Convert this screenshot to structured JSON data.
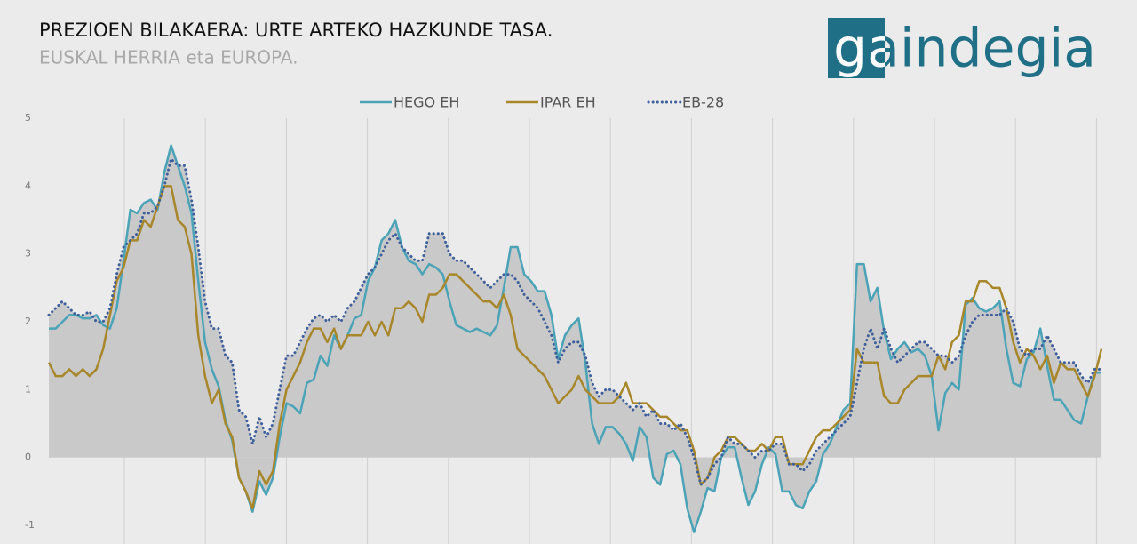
{
  "logo_text": "gaindegia",
  "chart_data": {
    "type": "line",
    "title": "PREZIOEN BILAKAERA: URTE ARTEKO HAZKUNDE TASA.",
    "subtitle": "EUSKAL HERRIA eta EUROPA.",
    "ylim": [
      -1,
      5
    ],
    "yticks": [
      -1,
      0,
      1,
      2,
      3,
      4,
      5
    ],
    "negative_tick_color": "#c00000",
    "area_color": "#c9c9c9",
    "legend": "top",
    "series": [
      {
        "name": "HEGO EH",
        "color": "#4ba3b8",
        "style": "solid",
        "area": true,
        "values": [
          1.9,
          1.9,
          2.0,
          2.1,
          2.1,
          2.05,
          2.05,
          2.1,
          1.95,
          1.9,
          2.2,
          2.9,
          3.65,
          3.6,
          3.75,
          3.8,
          3.65,
          4.2,
          4.6,
          4.3,
          4.0,
          3.6,
          2.6,
          1.7,
          1.3,
          1.05,
          0.55,
          0.25,
          -0.3,
          -0.5,
          -0.8,
          -0.35,
          -0.55,
          -0.3,
          0.3,
          0.8,
          0.75,
          0.65,
          1.1,
          1.15,
          1.5,
          1.35,
          1.8,
          1.6,
          1.8,
          2.05,
          2.1,
          2.6,
          2.8,
          3.2,
          3.3,
          3.5,
          3.1,
          2.9,
          2.85,
          2.7,
          2.85,
          2.8,
          2.7,
          2.3,
          1.95,
          1.9,
          1.85,
          1.9,
          1.85,
          1.8,
          1.95,
          2.5,
          3.1,
          3.1,
          2.7,
          2.6,
          2.45,
          2.45,
          2.1,
          1.45,
          1.8,
          1.95,
          2.05,
          1.4,
          0.5,
          0.2,
          0.45,
          0.45,
          0.35,
          0.2,
          -0.05,
          0.45,
          0.3,
          -0.3,
          -0.4,
          0.05,
          0.1,
          -0.1,
          -0.75,
          -1.1,
          -0.8,
          -0.45,
          -0.5,
          0.0,
          0.15,
          0.15,
          -0.3,
          -0.7,
          -0.5,
          -0.1,
          0.15,
          0.05,
          -0.5,
          -0.5,
          -0.7,
          -0.75,
          -0.5,
          -0.35,
          0.05,
          0.2,
          0.45,
          0.7,
          0.8,
          2.85,
          2.85,
          2.3,
          2.5,
          1.85,
          1.45,
          1.6,
          1.7,
          1.55,
          1.6,
          1.5,
          1.2,
          0.4,
          0.95,
          1.1,
          1.0,
          2.25,
          2.35,
          2.2,
          2.15,
          2.2,
          2.3,
          1.6,
          1.1,
          1.05,
          1.45,
          1.55,
          1.9,
          1.35,
          0.85,
          0.85,
          0.7,
          0.55,
          0.5,
          0.9,
          1.25,
          1.25
        ]
      },
      {
        "name": "IPAR EH",
        "color": "#a8862a",
        "style": "solid",
        "area": false,
        "values": [
          1.4,
          1.2,
          1.2,
          1.3,
          1.2,
          1.3,
          1.2,
          1.3,
          1.6,
          2.1,
          2.6,
          2.8,
          3.2,
          3.2,
          3.5,
          3.4,
          3.7,
          4.0,
          4.0,
          3.5,
          3.4,
          3.0,
          1.8,
          1.2,
          0.8,
          1.0,
          0.5,
          0.3,
          -0.3,
          -0.5,
          -0.75,
          -0.2,
          -0.4,
          -0.2,
          0.5,
          1.0,
          1.2,
          1.4,
          1.7,
          1.9,
          1.9,
          1.7,
          1.9,
          1.6,
          1.8,
          1.8,
          1.8,
          2.0,
          1.8,
          2.0,
          1.8,
          2.2,
          2.2,
          2.3,
          2.2,
          2.0,
          2.4,
          2.4,
          2.5,
          2.7,
          2.7,
          2.6,
          2.5,
          2.4,
          2.3,
          2.3,
          2.2,
          2.4,
          2.1,
          1.6,
          1.5,
          1.4,
          1.3,
          1.2,
          1.0,
          0.8,
          0.9,
          1.0,
          1.2,
          1.0,
          0.9,
          0.8,
          0.8,
          0.8,
          0.9,
          1.1,
          0.8,
          0.8,
          0.8,
          0.7,
          0.6,
          0.6,
          0.5,
          0.4,
          0.4,
          0.1,
          -0.4,
          -0.3,
          0.0,
          0.1,
          0.3,
          0.3,
          0.2,
          0.1,
          0.1,
          0.2,
          0.1,
          0.3,
          0.3,
          -0.1,
          -0.1,
          -0.1,
          0.1,
          0.3,
          0.4,
          0.4,
          0.5,
          0.6,
          0.7,
          1.6,
          1.4,
          1.4,
          1.4,
          0.9,
          0.8,
          0.8,
          1.0,
          1.1,
          1.2,
          1.2,
          1.2,
          1.5,
          1.3,
          1.7,
          1.8,
          2.3,
          2.3,
          2.6,
          2.6,
          2.5,
          2.5,
          2.2,
          1.7,
          1.4,
          1.6,
          1.5,
          1.3,
          1.5,
          1.1,
          1.4,
          1.3,
          1.3,
          1.1,
          0.9,
          1.2,
          1.6
        ]
      },
      {
        "name": "EB-28",
        "color": "#3d5f9b",
        "style": "dotted",
        "area": true,
        "values": [
          2.1,
          2.2,
          2.3,
          2.2,
          2.1,
          2.1,
          2.15,
          2.0,
          2.0,
          2.2,
          2.7,
          3.1,
          3.2,
          3.3,
          3.6,
          3.6,
          3.7,
          4.0,
          4.4,
          4.3,
          4.3,
          3.8,
          3.1,
          2.3,
          1.9,
          1.9,
          1.5,
          1.4,
          0.7,
          0.6,
          0.2,
          0.6,
          0.3,
          0.5,
          1.0,
          1.5,
          1.5,
          1.7,
          1.9,
          2.05,
          2.1,
          2.0,
          2.1,
          2.0,
          2.2,
          2.3,
          2.5,
          2.7,
          2.8,
          3.0,
          3.2,
          3.3,
          3.1,
          3.0,
          2.9,
          2.9,
          3.3,
          3.3,
          3.3,
          3.0,
          2.9,
          2.9,
          2.8,
          2.7,
          2.6,
          2.5,
          2.6,
          2.7,
          2.7,
          2.6,
          2.4,
          2.3,
          2.2,
          2.0,
          1.8,
          1.4,
          1.6,
          1.7,
          1.7,
          1.5,
          1.1,
          0.9,
          1.0,
          1.0,
          0.9,
          0.8,
          0.7,
          0.8,
          0.6,
          0.7,
          0.5,
          0.5,
          0.4,
          0.5,
          0.3,
          0.0,
          -0.4,
          -0.3,
          -0.1,
          0.0,
          0.3,
          0.2,
          0.2,
          0.1,
          0.0,
          0.1,
          0.1,
          0.2,
          0.2,
          -0.1,
          -0.1,
          -0.2,
          -0.1,
          0.1,
          0.2,
          0.3,
          0.4,
          0.5,
          0.6,
          1.1,
          1.6,
          1.9,
          1.6,
          1.9,
          1.6,
          1.4,
          1.5,
          1.6,
          1.7,
          1.7,
          1.6,
          1.5,
          1.5,
          1.4,
          1.5,
          1.8,
          2.0,
          2.1,
          2.1,
          2.1,
          2.1,
          2.2,
          2.0,
          1.6,
          1.5,
          1.6,
          1.6,
          1.8,
          1.6,
          1.4,
          1.4,
          1.4,
          1.2,
          1.1,
          1.3,
          1.3
        ]
      }
    ]
  }
}
